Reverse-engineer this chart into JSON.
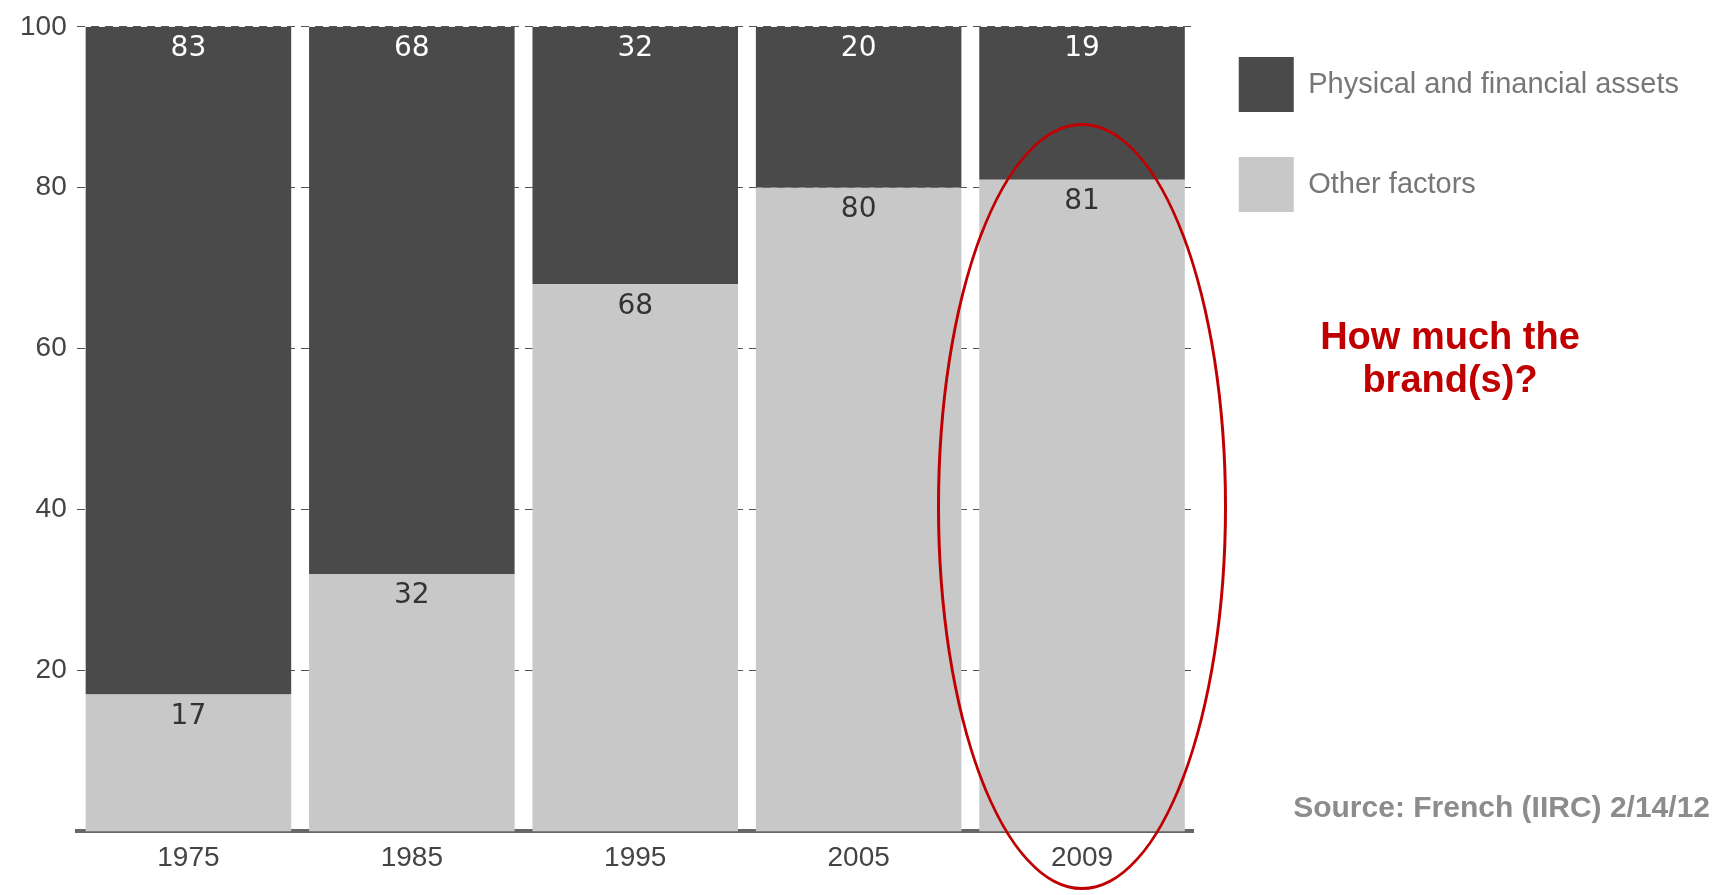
{
  "chart_data": {
    "type": "bar",
    "stacked": true,
    "categories": [
      "1975",
      "1985",
      "1995",
      "2005",
      "2009"
    ],
    "series": [
      {
        "name": "Other factors",
        "color": "#c8c8c8",
        "values": [
          17,
          32,
          68,
          80,
          81
        ]
      },
      {
        "name": "Physical and financial assets",
        "color": "#4a4a4a",
        "values": [
          83,
          68,
          32,
          20,
          19
        ]
      }
    ],
    "ylim": [
      0,
      100
    ],
    "yticks": [
      20,
      40,
      60,
      80,
      100
    ],
    "grid": "y",
    "line_style": "dashed",
    "legend": "top right",
    "data_labels": true,
    "annotations": [
      "How much the brand(s)?",
      "Source: French (IIRC) 2/14/12"
    ]
  }
}
